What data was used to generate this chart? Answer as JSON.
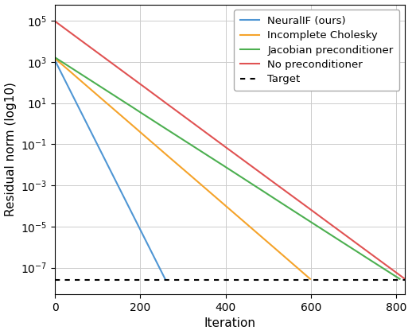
{
  "xlabel": "Iteration",
  "ylabel": "Residual norm (log10)",
  "xlim": [
    0,
    820
  ],
  "ylim_log": [
    -8.3,
    5.8
  ],
  "target_value": 2.5e-08,
  "lines": {
    "NeuralIF (ours)": {
      "color": "#4f96d4",
      "x_end": 258,
      "y_start_log": 3.07,
      "y_end_log": -7.55,
      "n_points": 259,
      "noise_scale": 0.008,
      "noise_cumsum_scale": 0.03
    },
    "Incomplete Cholesky": {
      "color": "#f5a32a",
      "x_end": 598,
      "y_start_log": 3.17,
      "y_end_log": -7.55,
      "n_points": 599,
      "noise_scale": 0.012,
      "noise_cumsum_scale": 0.025
    },
    "Jacobian preconditioner": {
      "color": "#4caf50",
      "x_end": 808,
      "y_start_log": 3.22,
      "y_end_log": -7.55,
      "n_points": 809,
      "noise_scale": 0.018,
      "noise_cumsum_scale": 0.02
    },
    "No preconditioner": {
      "color": "#e05252",
      "x_end": 820,
      "y_start_log": 4.98,
      "y_end_log": -7.55,
      "n_points": 820,
      "noise_scale": 0.018,
      "noise_cumsum_scale": 0.02
    }
  },
  "grid_color": "#cccccc",
  "background_color": "#ffffff",
  "line_width": 1.5,
  "figsize": [
    5.18,
    4.2
  ],
  "dpi": 100
}
